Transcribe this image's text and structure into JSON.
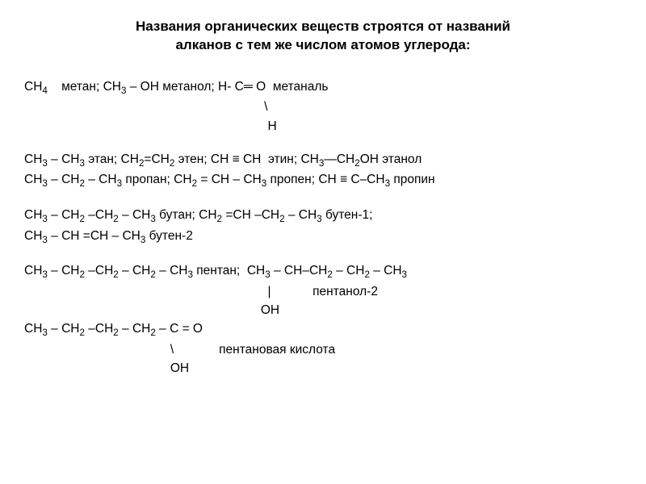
{
  "title_line1": "Названия органических веществ строятся от названий",
  "title_line2": "алканов с тем же числом атомов углерода:",
  "blocks": {
    "b1": {
      "l1_pre": "CH",
      "l1_post": "    метан; CH",
      "l1_mid": " – OH метанол; H- C",
      "l1_end": "  метаналь",
      "l2": "                                                                     \\",
      "l3": "                                                                      H"
    },
    "b2": {
      "l1": "CH₃ – CH₃ этан; CH₂=CH₂ этен; CH ≡ CH  этин; CH₃—CH₂OH этанол",
      "l2": "CH₃ – CH₂ – CH₃ пропан; CH₂ = CH – CH₃ пропен; CH ≡ C–CH₃ пропин"
    },
    "b3": {
      "l1": "CH₃ – CH₂ –CH₂ – CH₃ бутан; CH₂ =CH –CH₂ – CH₃ бутен-1;",
      "l2": "CH₃ – CH =CH – CH₃ бутен-2"
    },
    "b4": {
      "l1": "CH₃ – CH₂ –CH₂ – CH₂ – CH₃ пентан;  CH₃ – CH–CH₂ – CH₂ – CH₃",
      "l2": "                                                                      |            пентанол-2",
      "l3": "                                                                    OH"
    },
    "b5": {
      "l1": "CH₃ – CH₂ –CH₂ – CH₂ – C = O",
      "l2": "                                          \\             пентановая кислота",
      "l3": "                                          OH"
    }
  },
  "dblbond": "═ "
}
